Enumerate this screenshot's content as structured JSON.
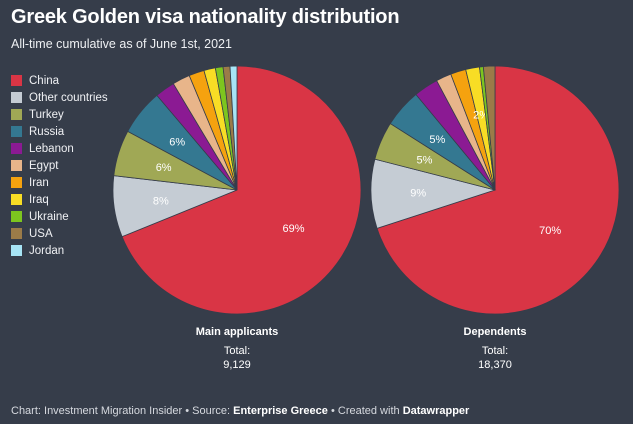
{
  "title": "Greek Golden visa nationality distribution",
  "subtitle": "All-time cumulative as of June 1st, 2021",
  "chart_data": [
    {
      "type": "pie",
      "title": "Main applicants",
      "total_label": "Total:",
      "total_value": "9,129",
      "slices": [
        {
          "label": "China",
          "value": 69,
          "text": "69%",
          "color": "#d93545"
        },
        {
          "label": "Other countries",
          "value": 8,
          "text": "8%",
          "color": "#c5ccd4"
        },
        {
          "label": "Turkey",
          "value": 6,
          "text": "6%",
          "color": "#a0a855"
        },
        {
          "label": "Russia",
          "value": 6,
          "text": "6%",
          "color": "#347891"
        },
        {
          "label": "Lebanon",
          "value": 2.6,
          "text": "",
          "color": "#8b1a93"
        },
        {
          "label": "Egypt",
          "value": 2.3,
          "text": "",
          "color": "#e8b58a"
        },
        {
          "label": "Iran",
          "value": 2.0,
          "text": "",
          "color": "#f5a20f"
        },
        {
          "label": "Iraq",
          "value": 1.5,
          "text": "",
          "color": "#f8dd25"
        },
        {
          "label": "Ukraine",
          "value": 1.0,
          "text": "",
          "color": "#7dc51f"
        },
        {
          "label": "USA",
          "value": 0.9,
          "text": "",
          "color": "#9b7b48"
        },
        {
          "label": "Jordan",
          "value": 0.9,
          "text": "",
          "color": "#a7e4f5"
        }
      ]
    },
    {
      "type": "pie",
      "title": "Dependents",
      "total_label": "Total:",
      "total_value": "18,370",
      "slices": [
        {
          "label": "China",
          "value": 70,
          "text": "70%",
          "color": "#d93545"
        },
        {
          "label": "Other countries",
          "value": 9,
          "text": "9%",
          "color": "#c5ccd4"
        },
        {
          "label": "Turkey",
          "value": 5,
          "text": "5%",
          "color": "#a0a855"
        },
        {
          "label": "Russia",
          "value": 5,
          "text": "5%",
          "color": "#347891"
        },
        {
          "label": "Lebanon",
          "value": 3.2,
          "text": "",
          "color": "#8b1a93"
        },
        {
          "label": "Egypt",
          "value": 2.0,
          "text": "",
          "color": "#e8b58a"
        },
        {
          "label": "Iran",
          "value": 2.0,
          "text": "",
          "color": "#f5a20f"
        },
        {
          "label": "Iraq",
          "value": 1.8,
          "text": "2%",
          "color": "#f8dd25"
        },
        {
          "label": "Ukraine",
          "value": 0.5,
          "text": "",
          "color": "#7dc51f"
        },
        {
          "label": "USA",
          "value": 1.5,
          "text": "",
          "color": "#9b7b48"
        },
        {
          "label": "Jordan",
          "value": 0,
          "text": "",
          "color": "#a7e4f5"
        }
      ]
    }
  ],
  "legend": [
    {
      "label": "China",
      "color": "#d93545"
    },
    {
      "label": "Other countries",
      "color": "#c5ccd4"
    },
    {
      "label": "Turkey",
      "color": "#a0a855"
    },
    {
      "label": "Russia",
      "color": "#347891"
    },
    {
      "label": "Lebanon",
      "color": "#8b1a93"
    },
    {
      "label": "Egypt",
      "color": "#e8b58a"
    },
    {
      "label": "Iran",
      "color": "#f5a20f"
    },
    {
      "label": "Iraq",
      "color": "#f8dd25"
    },
    {
      "label": "Ukraine",
      "color": "#7dc51f"
    },
    {
      "label": "USA",
      "color": "#9b7b48"
    },
    {
      "label": "Jordan",
      "color": "#a7e4f5"
    }
  ],
  "footer": {
    "prefix": "Chart: Investment Migration Insider • Source: ",
    "source": "Enterprise Greece",
    "middle": " • Created with ",
    "tool": "Datawrapper"
  }
}
